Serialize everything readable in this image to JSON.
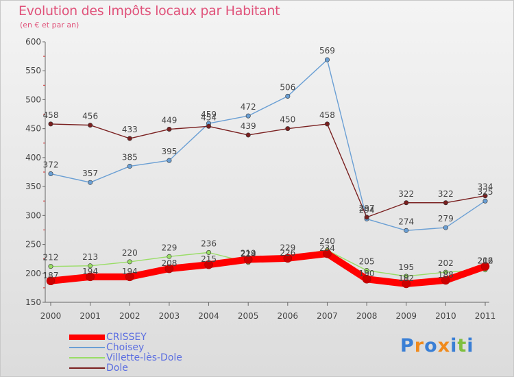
{
  "header": {
    "title": "Evolution des Impôts locaux par Habitant",
    "subtitle": "(en € et par an)"
  },
  "brand": {
    "letters": [
      "P",
      "r",
      "o",
      "x",
      "i",
      "t",
      "i"
    ],
    "colors": [
      "#3a7fd5",
      "#f08a1c",
      "#3a7fd5",
      "#f08a1c",
      "#3a7fd5",
      "#7fbf3f",
      "#3a7fd5"
    ]
  },
  "colors": {
    "axis": "#666666",
    "tick_text": "#444444",
    "value_text": "#444444",
    "legend_text": "#5b6ee1",
    "title": "#e0527a"
  },
  "chart_data": {
    "type": "line",
    "title": "Evolution des Impôts locaux par Habitant",
    "subtitle": "(en € et par an)",
    "xlabel": "",
    "ylabel": "",
    "x": [
      "2000",
      "2001",
      "2002",
      "2003",
      "2004",
      "2005",
      "2006",
      "2007",
      "2008",
      "2009",
      "2010",
      "2011"
    ],
    "ylim": [
      150,
      600
    ],
    "yticks": [
      150,
      200,
      250,
      300,
      350,
      400,
      450,
      500,
      550,
      600
    ],
    "grid": false,
    "legend_position": "bottom-left",
    "series": [
      {
        "name": "CRISSEY",
        "color": "#ff0000",
        "values": [
          187,
          194,
          194,
          208,
          215,
          224,
          226,
          234,
          190,
          182,
          188,
          212
        ]
      },
      {
        "name": "Choisey",
        "color": "#6a9fd4",
        "values": [
          372,
          357,
          385,
          395,
          459,
          472,
          506,
          569,
          294,
          274,
          279,
          325
        ]
      },
      {
        "name": "Villette-lès-Dole",
        "color": "#99dd66",
        "values": [
          212,
          213,
          220,
          229,
          236,
          219,
          229,
          240,
          205,
          195,
          202,
          206
        ]
      },
      {
        "name": "Dole",
        "color": "#7a2020",
        "values": [
          458,
          456,
          433,
          449,
          454,
          439,
          450,
          458,
          297,
          322,
          322,
          334
        ]
      }
    ]
  }
}
